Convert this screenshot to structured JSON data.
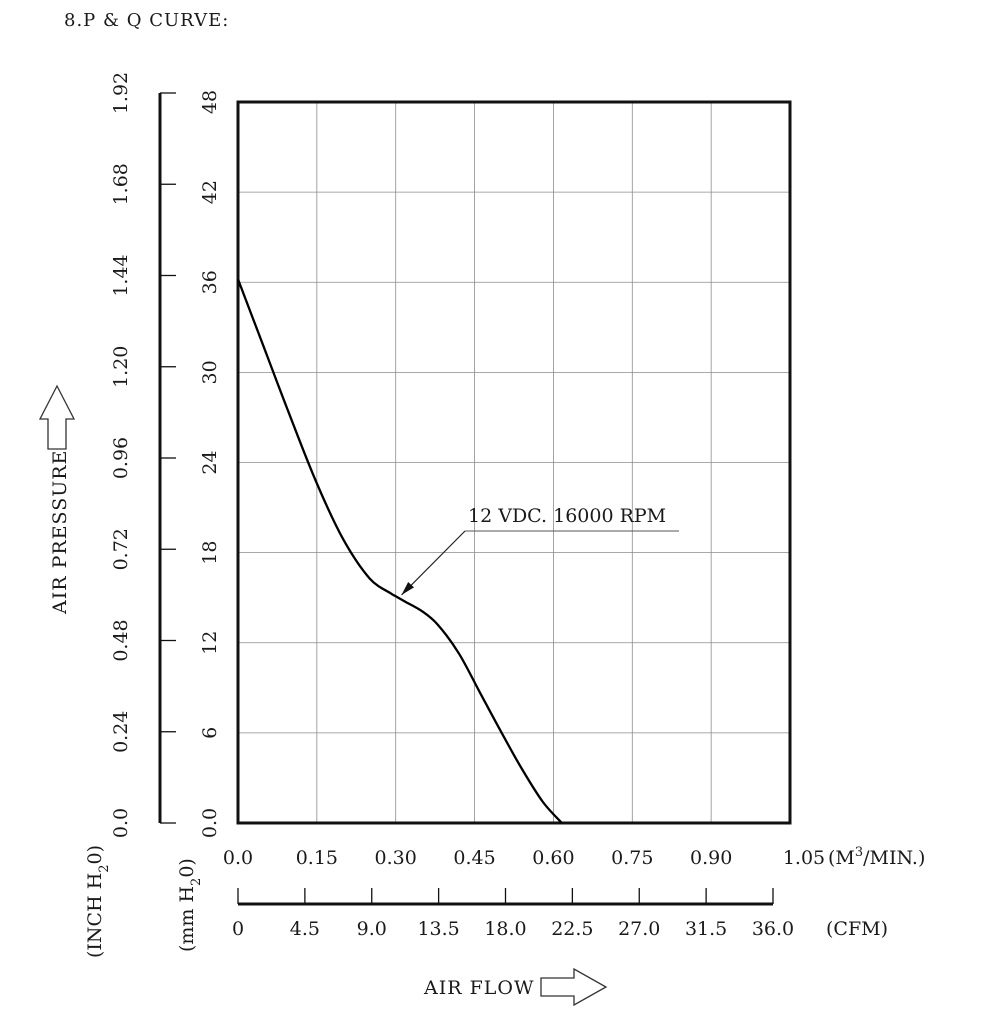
{
  "title": "8.P & Q CURVE:",
  "chart_data": {
    "type": "line",
    "title": "8.P & Q CURVE:",
    "x": {
      "primary_ticks": [
        "0.0",
        "0.15",
        "0.30",
        "0.45",
        "0.60",
        "0.75",
        "0.90",
        "1.05"
      ],
      "primary_unit_prefix": "(M",
      "primary_unit_sup": "3",
      "primary_unit_suffix": "/MIN.)",
      "range": [
        0,
        1.05
      ],
      "secondary_ticks": [
        "0",
        "4.5",
        "9.0",
        "13.5",
        "18.0",
        "22.5",
        "27.0",
        "31.5",
        "36.0"
      ],
      "secondary_unit": "(CFM)",
      "label": "AIR FLOW"
    },
    "y": {
      "mm_ticks": [
        "0.0",
        "6",
        "12",
        "18",
        "24",
        "30",
        "36",
        "42",
        "48"
      ],
      "mm_unit_prefix": "(mm H",
      "mm_unit_sub": "2",
      "mm_unit_suffix": "0)",
      "inch_ticks": [
        "0.0",
        "0.24",
        "0.48",
        "0.72",
        "0.96",
        "1.20",
        "1.44",
        "1.68",
        "1.92"
      ],
      "inch_unit_prefix": "(INCH H",
      "inch_unit_sub": "2",
      "inch_unit_suffix": "0)",
      "range": [
        0,
        48
      ],
      "label": "AIR PRESSURE"
    },
    "grid": true,
    "series": [
      {
        "name": "12 VDC. 16000 RPM",
        "x": [
          0.0,
          0.05,
          0.1,
          0.15,
          0.2,
          0.25,
          0.29,
          0.3,
          0.32,
          0.35,
          0.38,
          0.42,
          0.46,
          0.5,
          0.54,
          0.58,
          0.616
        ],
        "y": [
          36.2,
          31.6,
          27.0,
          22.6,
          18.9,
          16.3,
          15.3,
          15.1,
          14.7,
          14.1,
          13.2,
          11.3,
          8.7,
          6.1,
          3.6,
          1.4,
          0.0
        ]
      }
    ],
    "annotation": {
      "text": "12 VDC. 16000 RPM",
      "points_to": {
        "x": 0.315,
        "y": 15.05
      }
    }
  }
}
